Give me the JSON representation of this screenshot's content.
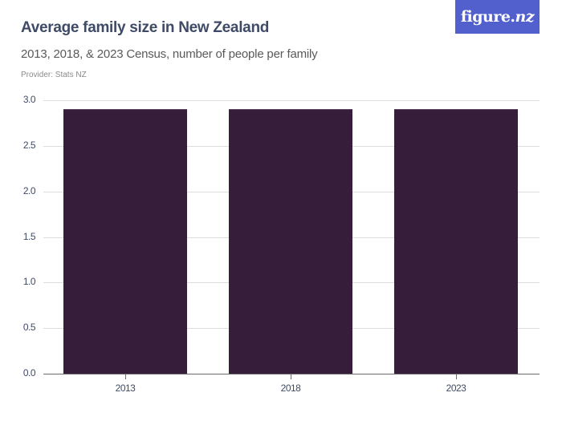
{
  "header": {
    "title": "Average family size in New Zealand",
    "subtitle": "2013, 2018, & 2023 Census, number of people per family",
    "provider": "Provider: Stats NZ"
  },
  "logo": {
    "text_main": "figure.",
    "text_suffix": "nz",
    "background": "#5160cc"
  },
  "chart_data": {
    "type": "bar",
    "title": "Average family size in New Zealand",
    "subtitle": "2013, 2018, & 2023 Census, number of people per family",
    "categories": [
      "2013",
      "2018",
      "2023"
    ],
    "values": [
      2.9,
      2.9,
      2.9
    ],
    "xlabel": "",
    "ylabel": "",
    "ylim": [
      0,
      3.0
    ],
    "yticks": [
      "0.0",
      "0.5",
      "1.0",
      "1.5",
      "2.0",
      "2.5",
      "3.0"
    ],
    "grid": true,
    "legend": null,
    "bar_color": "#361e3a"
  }
}
